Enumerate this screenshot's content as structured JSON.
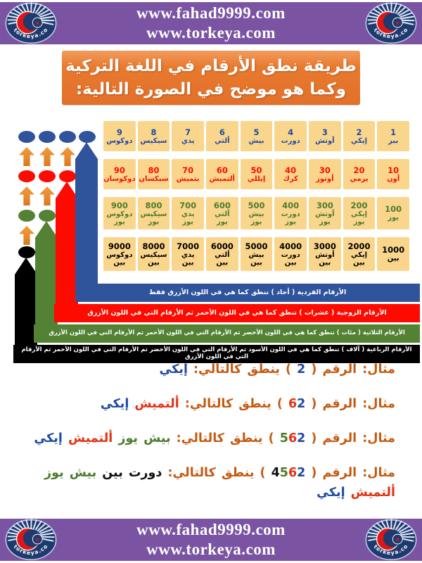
{
  "site": {
    "url1": "www.fahad9999.com",
    "url2": "www.torkeya.com",
    "logo_text": "torkeya.com"
  },
  "title": {
    "line1": "طريقة نطق الأرقام في اللغة التركية",
    "line2": "وكما هو موضح في الصورة التالية:"
  },
  "table": {
    "rows": [
      {
        "name": "units",
        "color": "#1e49a5",
        "cells": [
          {
            "num": "1",
            "word": "بير"
          },
          {
            "num": "2",
            "word": "إيكي"
          },
          {
            "num": "3",
            "word": "أوتش"
          },
          {
            "num": "4",
            "word": "دورت"
          },
          {
            "num": "5",
            "word": "بيش"
          },
          {
            "num": "6",
            "word": "ألتي"
          },
          {
            "num": "7",
            "word": "يدي"
          },
          {
            "num": "8",
            "word": "سيكيس"
          },
          {
            "num": "9",
            "word": "دوكوس"
          }
        ]
      },
      {
        "name": "tens",
        "color": "#fb0d00",
        "cells": [
          {
            "num": "10",
            "word": "أون"
          },
          {
            "num": "20",
            "word": "يرمي"
          },
          {
            "num": "30",
            "word": "أوتوز"
          },
          {
            "num": "40",
            "word": "كرك"
          },
          {
            "num": "50",
            "word": "إيللي"
          },
          {
            "num": "60",
            "word": "ألتميش"
          },
          {
            "num": "70",
            "word": "يتميش"
          },
          {
            "num": "80",
            "word": "سيكسان"
          },
          {
            "num": "90",
            "word": "دوكوسان"
          }
        ]
      },
      {
        "name": "hundreds",
        "color": "#4e7b2f",
        "cells": [
          {
            "num": "100",
            "word": "يوز"
          },
          {
            "num": "200",
            "word": "إيكي\nيوز"
          },
          {
            "num": "300",
            "word": "أوتش\nيوز"
          },
          {
            "num": "400",
            "word": "دورت\nيوز"
          },
          {
            "num": "500",
            "word": "بيش\nيوز"
          },
          {
            "num": "600",
            "word": "ألتي\nيوز"
          },
          {
            "num": "700",
            "word": "يدي\nيوز"
          },
          {
            "num": "800",
            "word": "سيكيس\nيوز"
          },
          {
            "num": "900",
            "word": "دوكوس\nيوز"
          }
        ]
      },
      {
        "name": "thousands",
        "color": "#000000",
        "cells": [
          {
            "num": "1000",
            "word": "بين"
          },
          {
            "num": "2000",
            "word": "إيكي\nبين"
          },
          {
            "num": "3000",
            "word": "أوتش\nبين"
          },
          {
            "num": "4000",
            "word": "دورت\nبين"
          },
          {
            "num": "5000",
            "word": "بيش\nبين"
          },
          {
            "num": "6000",
            "word": "ألتي\nبين"
          },
          {
            "num": "7000",
            "word": "يدي\nبين"
          },
          {
            "num": "8000",
            "word": "سيكيس\nبين"
          },
          {
            "num": "9000",
            "word": "دوكوس\nبين"
          }
        ]
      }
    ]
  },
  "rules": [
    {
      "color": "blue",
      "text": "الأرقام الفردية ( أحاد ) تنطق كما هي في اللون الأزرق فقط"
    },
    {
      "color": "red",
      "text": "الأرقام الزوجية ( عشرات ) تنطق كما هي في اللون الأحمر ثم الأرقام التي في اللون الأزرق"
    },
    {
      "color": "green",
      "text": "الأرقام الثلاثية ( مئات ) تنطق كما هي في اللون الأخضر ثم الأرقام التي في اللون الأحمر ثم الأرقام التي في اللون الأزرق"
    },
    {
      "color": "black",
      "text": "الأرقام الرباعية ( آلاف ) تنطق كما هي في اللون الأسود ثم الأرقام التي  في اللون الأخضر ثم الأرقام التي في اللون الأحمر ثم الأرقام التي في اللون الأزرق"
    }
  ],
  "diagram": {
    "columns": [
      {
        "ovals": [
          "blue",
          "red",
          "green",
          "black"
        ],
        "band": "black"
      },
      {
        "ovals": [
          "blue",
          "red",
          "green"
        ],
        "band": "green"
      },
      {
        "ovals": [
          "blue",
          "red"
        ],
        "band": "red"
      },
      {
        "ovals": [
          "blue"
        ],
        "band": "blue"
      }
    ]
  },
  "examples": [
    {
      "segments": [
        {
          "t": "مثال: الرقم ( ",
          "c": "orange"
        },
        {
          "t": "2",
          "c": "blue"
        },
        {
          "t": " ) ينطق كالتالي: ",
          "c": "orange"
        },
        {
          "t": "إيكي",
          "c": "blue"
        }
      ]
    },
    {
      "segments": [
        {
          "t": "مثال: الرقم ( ",
          "c": "orange"
        },
        {
          "t": "6",
          "c": "red"
        },
        {
          "t": "2",
          "c": "blue"
        },
        {
          "t": " ) ينطق كالتالي: ",
          "c": "orange"
        },
        {
          "t": "ألتميش ",
          "c": "red"
        },
        {
          "t": "إيكي",
          "c": "blue"
        }
      ]
    },
    {
      "segments": [
        {
          "t": "مثال: الرقم ( ",
          "c": "orange"
        },
        {
          "t": "5",
          "c": "green"
        },
        {
          "t": "6",
          "c": "red"
        },
        {
          "t": "2",
          "c": "blue"
        },
        {
          "t": " ) ينطق كالتالي: ",
          "c": "orange"
        },
        {
          "t": "بيش يوز ",
          "c": "green"
        },
        {
          "t": "ألتميش ",
          "c": "red"
        },
        {
          "t": "إيكي",
          "c": "blue"
        }
      ]
    },
    {
      "segments": [
        {
          "t": "مثال: الرقم ( ",
          "c": "orange"
        },
        {
          "t": "4",
          "c": "black"
        },
        {
          "t": "5",
          "c": "green"
        },
        {
          "t": "6",
          "c": "red"
        },
        {
          "t": "2",
          "c": "blue"
        },
        {
          "t": " ) ينطق كالتالي: ",
          "c": "orange"
        },
        {
          "t": "دورت بين ",
          "c": "black"
        },
        {
          "t": "بيش يوز ",
          "c": "green"
        },
        {
          "t": "ألتميش ",
          "c": "red"
        },
        {
          "t": "إيكي",
          "c": "blue"
        }
      ]
    }
  ],
  "colors": {
    "blue": "#30549b",
    "red": "#fd0a00",
    "green": "#548235",
    "black": "#000000",
    "arrow": "#e8872d",
    "cell_bg": "#fad68d",
    "banner_orange": "#e87a2e",
    "bar_purple": "#7a54a3",
    "ex": {
      "orange": "#c55a11",
      "blue": "#1e49a5",
      "red": "#e23313",
      "green": "#4e7b2f",
      "black": "#111111"
    }
  }
}
